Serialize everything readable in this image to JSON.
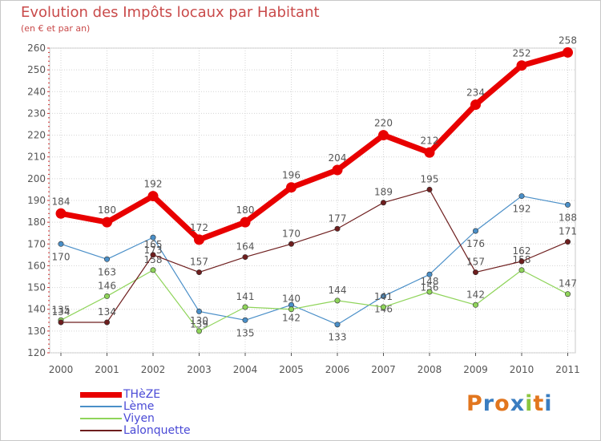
{
  "title": "Evolution des Impôts locaux par Habitant",
  "subtitle": "(en € et par an)",
  "logo": {
    "text": "Proxiti",
    "letters": [
      "P",
      "r",
      "o",
      "x",
      "i",
      "t",
      "i"
    ],
    "colors": [
      "#e2761e",
      "#3a7dc0",
      "#e2761e",
      "#3a7dc0",
      "#8cc63f",
      "#e2761e",
      "#3a7dc0"
    ]
  },
  "colors": {
    "title": "#c94a4a",
    "axis": "#555555",
    "grid": "#d4d4d4",
    "axis_tick_red": "#d03030"
  },
  "chart_data": {
    "type": "line",
    "title": "Evolution des Impôts locaux par Habitant",
    "subtitle": "(en € et par an)",
    "xlabel": "",
    "ylabel": "",
    "x": [
      "2000",
      "2001",
      "2002",
      "2003",
      "2004",
      "2005",
      "2006",
      "2007",
      "2008",
      "2009",
      "2010",
      "2011"
    ],
    "ylim": [
      120,
      260
    ],
    "yticks": [
      "120",
      "130",
      "140",
      "150",
      "160",
      "170",
      "180",
      "190",
      "200",
      "210",
      "220",
      "230",
      "240",
      "250",
      "260"
    ],
    "grid": true,
    "legend": "bottom-left",
    "series": [
      {
        "name": "Lème",
        "color": "#4a8fc8",
        "marker": "#4a8fc8",
        "width": 1.2,
        "labels_below": true,
        "values": [
          170,
          163,
          173,
          139,
          135,
          142,
          133,
          146,
          156,
          176,
          192,
          188
        ],
        "labels": [
          "170",
          "163",
          "173",
          "139",
          "135",
          "142",
          "133",
          "146",
          "156",
          "176",
          "192",
          "188"
        ]
      },
      {
        "name": "Viyen",
        "color": "#8fd45a",
        "marker": "#8fd45a",
        "width": 1.2,
        "labels_below": false,
        "values": [
          135,
          146,
          158,
          130,
          141,
          140,
          144,
          141,
          148,
          142,
          158,
          147
        ],
        "labels": [
          "135",
          "146",
          "158",
          "130",
          "141",
          "140",
          "144",
          "141",
          "148",
          "142",
          "158",
          "147"
        ]
      },
      {
        "name": "Lalonquette",
        "color": "#6e1e1e",
        "marker": "#6e1e1e",
        "width": 1.2,
        "labels_below": false,
        "values": [
          134,
          134,
          165,
          157,
          164,
          170,
          177,
          189,
          195,
          157,
          162,
          171
        ],
        "labels": [
          "134",
          "134",
          "165",
          "157",
          "164",
          "170",
          "177",
          "189",
          "195",
          "157",
          "162",
          "171"
        ]
      },
      {
        "name": "THèZE",
        "color": "#e80000",
        "marker": "#e80000",
        "width": 7,
        "labels_below": false,
        "values": [
          184,
          180,
          192,
          172,
          180,
          196,
          204,
          220,
          212,
          234,
          252,
          258
        ],
        "labels": [
          "184",
          "180",
          "192",
          "172",
          "180",
          "196",
          "204",
          "220",
          "212",
          "234",
          "252",
          "258"
        ]
      }
    ],
    "legend_items": [
      {
        "name": "THèZE",
        "color": "#e80000",
        "width": 7
      },
      {
        "name": "Lème",
        "color": "#4a8fc8",
        "width": 1.5
      },
      {
        "name": "Viyen",
        "color": "#8fd45a",
        "width": 1.5
      },
      {
        "name": "Lalonquette",
        "color": "#6e1e1e",
        "width": 1.5
      }
    ]
  }
}
